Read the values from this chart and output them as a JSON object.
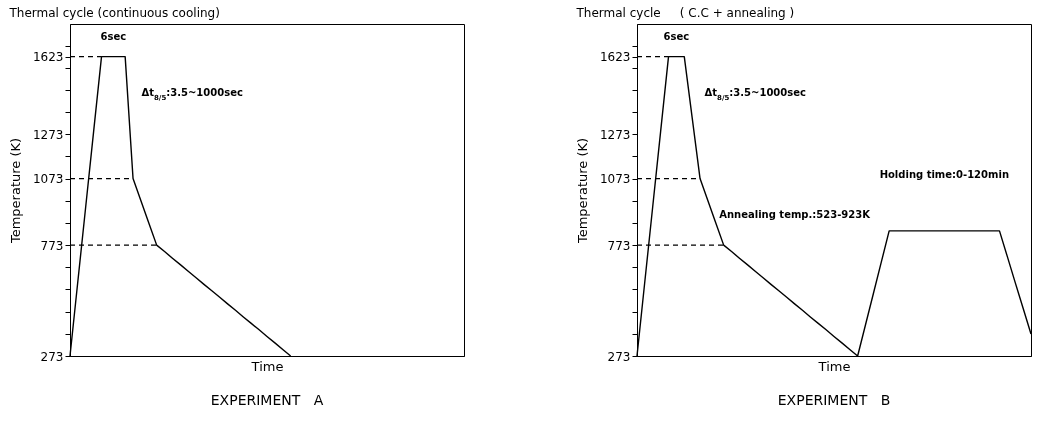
{
  "chart_data": [
    {
      "type": "line",
      "title": "Thermal cycle (continuous cooling)",
      "xlabel": "Time",
      "ylabel": "Temperature (K)",
      "ylim": [
        273,
        1770
      ],
      "categories": [
        null,
        null,
        null,
        null,
        null,
        null,
        null,
        null,
        null,
        null,
        null,
        null,
        null,
        null,
        null,
        null,
        null,
        null,
        null,
        null,
        null,
        null,
        null,
        null,
        null,
        null,
        null,
        null,
        null,
        null,
        null,
        null,
        null,
        null,
        null,
        null,
        null,
        null,
        null,
        null,
        null,
        null,
        null,
        null,
        null,
        null,
        null,
        null,
        null,
        null,
        null
      ],
      "yticks": [
        273,
        {
          "value": 373,
          "label": null
        },
        {
          "value": 473,
          "label": null
        },
        {
          "value": 573,
          "label": null
        },
        {
          "value": 673,
          "label": null
        },
        773,
        {
          "value": 873,
          "label": null
        },
        {
          "value": 973,
          "label": null
        },
        1073,
        {
          "value": 1173,
          "label": null
        },
        1273,
        {
          "value": 1373,
          "label": null
        },
        {
          "value": 1473,
          "label": null
        },
        {
          "value": 1573,
          "label": null
        },
        1623,
        {
          "value": 1673,
          "label": null
        }
      ],
      "tick_labels": "y",
      "grid": false,
      "series": [
        {
          "color": "#000000",
          "values": [
            273,
            611,
            948,
            1286,
            1623,
            1623,
            1623,
            1623,
            1073,
            973,
            873,
            773,
            744,
            714,
            685,
            655,
            626,
            596,
            567,
            538,
            508,
            479,
            449,
            420,
            391,
            361,
            332,
            302,
            273,
            null,
            null,
            null,
            null,
            null,
            null,
            null,
            null,
            null,
            null,
            null,
            null,
            null,
            null,
            null,
            null,
            null,
            null,
            null,
            null,
            null,
            null
          ]
        },
        {
          "color": "#000000",
          "line_style": "dashed",
          "values": [
            1623,
            1623,
            1623,
            1623,
            1623,
            null,
            null,
            null,
            null,
            null,
            null,
            null,
            null,
            null,
            null,
            null,
            null,
            null,
            null,
            null,
            null,
            null,
            null,
            null,
            null,
            null,
            null,
            null,
            null,
            null,
            null,
            null,
            null,
            null,
            null,
            null,
            null,
            null,
            null,
            null,
            null,
            null,
            null,
            null,
            null,
            null,
            null,
            null,
            null,
            null,
            null
          ]
        },
        {
          "color": "#000000",
          "line_style": "dashed",
          "values": [
            1073,
            1073,
            1073,
            1073,
            1073,
            1073,
            1073,
            1073,
            1073,
            null,
            null,
            null,
            null,
            null,
            null,
            null,
            null,
            null,
            null,
            null,
            null,
            null,
            null,
            null,
            null,
            null,
            null,
            null,
            null,
            null,
            null,
            null,
            null,
            null,
            null,
            null,
            null,
            null,
            null,
            null,
            null,
            null,
            null,
            null,
            null,
            null,
            null,
            null,
            null,
            null,
            null
          ]
        },
        {
          "color": "#000000",
          "line_style": "dashed",
          "values": [
            773,
            773,
            773,
            773,
            773,
            773,
            773,
            773,
            773,
            773,
            773,
            773,
            null,
            null,
            null,
            null,
            null,
            null,
            null,
            null,
            null,
            null,
            null,
            null,
            null,
            null,
            null,
            null,
            null,
            null,
            null,
            null,
            null,
            null,
            null,
            null,
            null,
            null,
            null,
            null,
            null,
            null,
            null,
            null,
            null,
            null,
            null,
            null,
            null,
            null,
            null
          ]
        }
      ],
      "annotations": [
        "6sec",
        "Δt$_{8/5}$:3.5~1000sec",
        "EXPERIMENT   A"
      ]
    },
    {
      "type": "line",
      "title": "Thermal cycle     ( C.C + annealing )",
      "xlabel": "Time",
      "ylabel": "Temperature (K)",
      "ylim": [
        273,
        1770
      ],
      "categories": [
        null,
        null,
        null,
        null,
        null,
        null,
        null,
        null,
        null,
        null,
        null,
        null,
        null,
        null,
        null,
        null,
        null,
        null,
        null,
        null,
        null,
        null,
        null,
        null,
        null,
        null,
        null,
        null,
        null,
        null,
        null,
        null,
        null,
        null,
        null,
        null,
        null,
        null,
        null,
        null,
        null,
        null,
        null,
        null,
        null,
        null,
        null,
        null,
        null,
        null,
        null
      ],
      "yticks": [
        273,
        {
          "value": 373,
          "label": null
        },
        {
          "value": 473,
          "label": null
        },
        {
          "value": 573,
          "label": null
        },
        {
          "value": 673,
          "label": null
        },
        773,
        {
          "value": 873,
          "label": null
        },
        {
          "value": 973,
          "label": null
        },
        1073,
        {
          "value": 1173,
          "label": null
        },
        1273,
        {
          "value": 1373,
          "label": null
        },
        {
          "value": 1473,
          "label": null
        },
        {
          "value": 1573,
          "label": null
        },
        1623,
        {
          "value": 1673,
          "label": null
        }
      ],
      "tick_labels": "y",
      "grid": false,
      "series": [
        {
          "color": "#000000",
          "values": [
            273,
            611,
            948,
            1286,
            1623,
            1623,
            1623,
            1348,
            1073,
            973,
            873,
            773,
            744,
            714,
            685,
            655,
            626,
            596,
            567,
            538,
            508,
            479,
            449,
            420,
            391,
            361,
            332,
            302,
            273,
            414,
            555,
            696,
            837,
            837,
            837,
            837,
            837,
            837,
            837,
            837,
            837,
            837,
            837,
            837,
            837,
            837,
            837,
            721,
            604,
            488,
            372
          ]
        },
        {
          "color": "#000000",
          "line_style": "dashed",
          "values": [
            1623,
            1623,
            1623,
            1623,
            1623,
            null,
            null,
            null,
            null,
            null,
            null,
            null,
            null,
            null,
            null,
            null,
            null,
            null,
            null,
            null,
            null,
            null,
            null,
            null,
            null,
            null,
            null,
            null,
            null,
            null,
            null,
            null,
            null,
            null,
            null,
            null,
            null,
            null,
            null,
            null,
            null,
            null,
            null,
            null,
            null,
            null,
            null,
            null,
            null,
            null,
            null
          ]
        },
        {
          "color": "#000000",
          "line_style": "dashed",
          "values": [
            1073,
            1073,
            1073,
            1073,
            1073,
            1073,
            1073,
            1073,
            1073,
            null,
            null,
            null,
            null,
            null,
            null,
            null,
            null,
            null,
            null,
            null,
            null,
            null,
            null,
            null,
            null,
            null,
            null,
            null,
            null,
            null,
            null,
            null,
            null,
            null,
            null,
            null,
            null,
            null,
            null,
            null,
            null,
            null,
            null,
            null,
            null,
            null,
            null,
            null,
            null,
            null,
            null
          ]
        },
        {
          "color": "#000000",
          "line_style": "dashed",
          "values": [
            773,
            773,
            773,
            773,
            773,
            773,
            773,
            773,
            773,
            773,
            773,
            773,
            null,
            null,
            null,
            null,
            null,
            null,
            null,
            null,
            null,
            null,
            null,
            null,
            null,
            null,
            null,
            null,
            null,
            null,
            null,
            null,
            null,
            null,
            null,
            null,
            null,
            null,
            null,
            null,
            null,
            null,
            null,
            null,
            null,
            null,
            null,
            null,
            null,
            null,
            null
          ]
        }
      ],
      "annotations": [
        "6sec",
        "Δt$_{8/5}$:3.5~1000sec",
        "Annealing temp.:523-923K",
        "Holding time:0-120min",
        "EXPERIMENT   B"
      ]
    }
  ]
}
